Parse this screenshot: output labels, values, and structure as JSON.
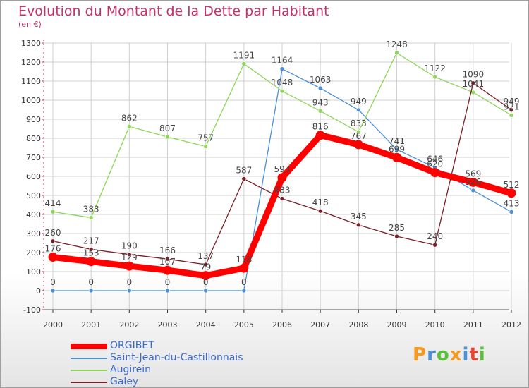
{
  "header": {
    "title": "Evolution du Montant de la Dette par Habitant",
    "subtitle": "(en €)"
  },
  "logo": {
    "text": "Proxiti",
    "colors": [
      "#f39a1e",
      "#4b8fd6",
      "#5bbf3b",
      "#f39a1e",
      "#4b8fd6",
      "#e8442e",
      "#5bbf3b"
    ]
  },
  "chart_data": {
    "type": "line",
    "title": "Evolution du Montant de la Dette par Habitant",
    "ylabel": "(en €)",
    "x": [
      "2000",
      "2001",
      "2002",
      "2003",
      "2004",
      "2005",
      "2006",
      "2007",
      "2008",
      "2009",
      "2010",
      "2011",
      "2012"
    ],
    "ylim": [
      -100,
      1300
    ],
    "yticks": [
      "-100",
      "0",
      "100",
      "200",
      "300",
      "400",
      "500",
      "600",
      "700",
      "800",
      "900",
      "1000",
      "1100",
      "1200",
      "1300"
    ],
    "grid": true,
    "legend_position": "bottom-left",
    "series": [
      {
        "name": "ORGIBET",
        "color": "#ff0000",
        "values": [
          176,
          153,
          129,
          107,
          79,
          118,
          593,
          816,
          767,
          699,
          620,
          569,
          512
        ],
        "labels": [
          "176",
          "153",
          "129",
          "107",
          "79",
          "118",
          "593",
          "816",
          "767",
          "699",
          "620",
          "569",
          "512"
        ]
      },
      {
        "name": "Saint-Jean-du-Castillonnais",
        "color": "#4a90d9",
        "values": [
          0,
          0,
          0,
          0,
          0,
          0,
          1164,
          1063,
          949,
          741,
          646,
          526,
          413
        ],
        "labels": [
          "0",
          "0",
          "0",
          "0",
          "0",
          "0",
          "1164",
          "1063",
          "949",
          "741",
          "646",
          "526",
          "413"
        ]
      },
      {
        "name": "Augirein",
        "color": "#8fd65a",
        "values": [
          414,
          383,
          862,
          807,
          757,
          1191,
          1048,
          943,
          833,
          1248,
          1122,
          1041,
          921
        ],
        "labels": [
          "414",
          "383",
          "862",
          "807",
          "757",
          "1191",
          "1048",
          "943",
          "833",
          "1248",
          "1122",
          "1041",
          "921"
        ]
      },
      {
        "name": "Galey",
        "color": "#7a1f28",
        "values": [
          260,
          217,
          190,
          166,
          137,
          587,
          483,
          418,
          345,
          285,
          240,
          1090,
          949
        ],
        "labels": [
          "260",
          "217",
          "190",
          "166",
          "137",
          "587",
          "483",
          "418",
          "345",
          "285",
          "240",
          "1090",
          "949"
        ]
      }
    ]
  }
}
